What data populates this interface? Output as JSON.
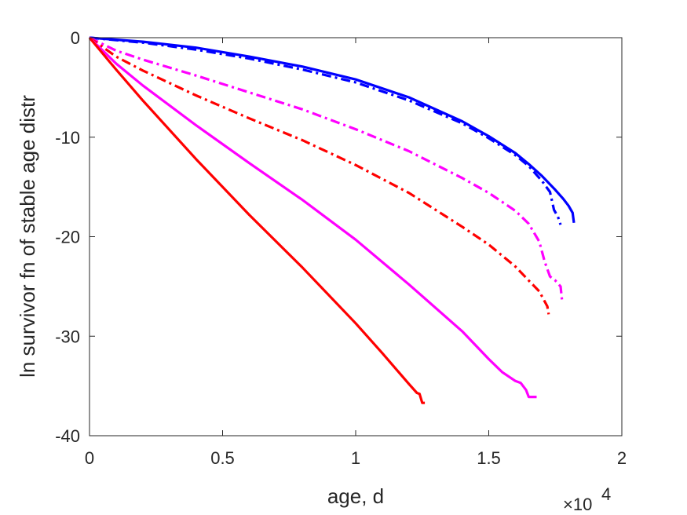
{
  "chart_data": {
    "type": "line",
    "title": "",
    "xlabel": "age, d",
    "ylabel": "ln survivor fn of stable age distr",
    "x_multiplier_label": "×10",
    "x_multiplier_exponent": "4",
    "xlim": [
      0,
      20000
    ],
    "ylim": [
      -40,
      0
    ],
    "xticks": [
      0,
      5000,
      10000,
      15000,
      20000
    ],
    "xtick_labels": [
      "0",
      "0.5",
      "1",
      "1.5",
      "2"
    ],
    "yticks": [
      0,
      -10,
      -20,
      -30,
      -40
    ],
    "ytick_labels": [
      "0",
      "-10",
      "-20",
      "-30",
      "-40"
    ],
    "grid": false,
    "legend": "none",
    "series": [
      {
        "color": "#0000ff",
        "style": "solid",
        "x": [
          0,
          2000,
          4000,
          6000,
          8000,
          10000,
          12000,
          14000,
          15000,
          16000,
          16500,
          17000,
          17500,
          17800,
          18000,
          18150,
          18200
        ],
        "y": [
          0,
          -0.4,
          -1.0,
          -1.9,
          -2.9,
          -4.2,
          -6.0,
          -8.4,
          -9.9,
          -11.6,
          -12.7,
          -13.9,
          -15.3,
          -16.2,
          -16.9,
          -17.6,
          -18.6
        ]
      },
      {
        "color": "#0000ff",
        "style": "dashdot",
        "x": [
          0,
          2000,
          4000,
          6000,
          8000,
          10000,
          12000,
          14000,
          15000,
          16000,
          16500,
          17000,
          17300,
          17450,
          17600,
          17700
        ],
        "y": [
          0,
          -0.5,
          -1.2,
          -2.1,
          -3.2,
          -4.5,
          -6.3,
          -8.6,
          -10.1,
          -11.8,
          -12.9,
          -14.4,
          -15.5,
          -17.3,
          -18.0,
          -18.8
        ]
      },
      {
        "color": "#ff00ff",
        "style": "dashdot",
        "x": [
          0,
          1000,
          2000,
          4000,
          6000,
          8000,
          10000,
          12000,
          14000,
          15000,
          16000,
          16500,
          16900,
          17100,
          17300,
          17500,
          17700,
          17750
        ],
        "y": [
          0,
          -1.3,
          -2.2,
          -3.8,
          -5.5,
          -7.2,
          -9.2,
          -11.4,
          -14.1,
          -15.6,
          -17.4,
          -18.7,
          -20.5,
          -22.5,
          -24.0,
          -24.4,
          -25.0,
          -26.3
        ]
      },
      {
        "color": "#ff0000",
        "style": "dashdot",
        "x": [
          0,
          1000,
          2000,
          4000,
          6000,
          8000,
          10000,
          12000,
          14000,
          15000,
          16000,
          16500,
          16900,
          17100,
          17200,
          17250
        ],
        "y": [
          0,
          -1.9,
          -3.3,
          -5.8,
          -8.1,
          -10.3,
          -12.8,
          -15.6,
          -19.0,
          -20.8,
          -23.0,
          -24.4,
          -25.5,
          -26.5,
          -27.0,
          -27.8
        ]
      },
      {
        "color": "#ff00ff",
        "style": "solid",
        "x": [
          0,
          1000,
          2000,
          4000,
          6000,
          8000,
          10000,
          12000,
          14000,
          15000,
          15500,
          16000,
          16200,
          16400,
          16500,
          16600,
          16800
        ],
        "y": [
          0,
          -2.6,
          -4.8,
          -8.8,
          -12.6,
          -16.3,
          -20.3,
          -24.8,
          -29.5,
          -32.3,
          -33.6,
          -34.5,
          -34.7,
          -35.4,
          -36.1,
          -36.1,
          -36.1
        ]
      },
      {
        "color": "#ff0000",
        "style": "solid",
        "x": [
          0,
          1000,
          2000,
          4000,
          6000,
          8000,
          10000,
          11000,
          12000,
          12300,
          12400,
          12500,
          12600
        ],
        "y": [
          0,
          -3.2,
          -6.3,
          -12.2,
          -17.8,
          -23.1,
          -28.7,
          -31.7,
          -34.8,
          -35.7,
          -35.8,
          -36.7,
          -36.7
        ]
      }
    ]
  }
}
